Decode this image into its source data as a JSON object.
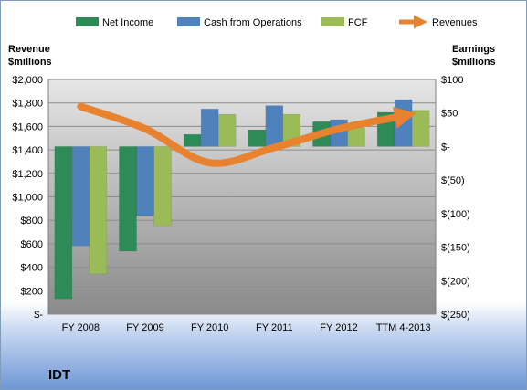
{
  "company": "IDT",
  "chart_data": {
    "type": "bar",
    "title": "",
    "categories": [
      "FY 2008",
      "FY 2009",
      "FY 2010",
      "FY 2011",
      "FY 2012",
      "TTM 4-2013"
    ],
    "left_axis": {
      "title_line1": "Revenue",
      "title_line2": "$millions",
      "range": [
        0,
        2000
      ],
      "ticks": [
        "$-",
        "$200",
        "$400",
        "$600",
        "$800",
        "$1,000",
        "$1,200",
        "$1,400",
        "$1,600",
        "$1,800",
        "$2,000"
      ]
    },
    "right_axis": {
      "title_line1": "Earnings",
      "title_line2": "$millions",
      "range": [
        -250,
        100
      ],
      "ticks": [
        "$(250)",
        "$(200)",
        "$(150)",
        "$(100)",
        "$(50)",
        "$-",
        "$50",
        "$100"
      ]
    },
    "series": [
      {
        "name": "Net Income",
        "type": "bar",
        "axis": "right",
        "color": "#2e8b57",
        "values": [
          -227,
          -156,
          18,
          25,
          37,
          51
        ]
      },
      {
        "name": "Cash from Operations",
        "type": "bar",
        "axis": "right",
        "color": "#4f81bd",
        "values": [
          -148,
          -103,
          56,
          61,
          40,
          70
        ]
      },
      {
        "name": "FCF",
        "type": "bar",
        "axis": "right",
        "color": "#9bbb59",
        "values": [
          -190,
          -118,
          48,
          48,
          28,
          54
        ]
      },
      {
        "name": "Revenues",
        "type": "line",
        "axis": "left",
        "color": "#e8822e",
        "values": [
          1770,
          1580,
          1290,
          1420,
          1580,
          1690
        ]
      }
    ],
    "legend_position": "top",
    "grid": true
  }
}
